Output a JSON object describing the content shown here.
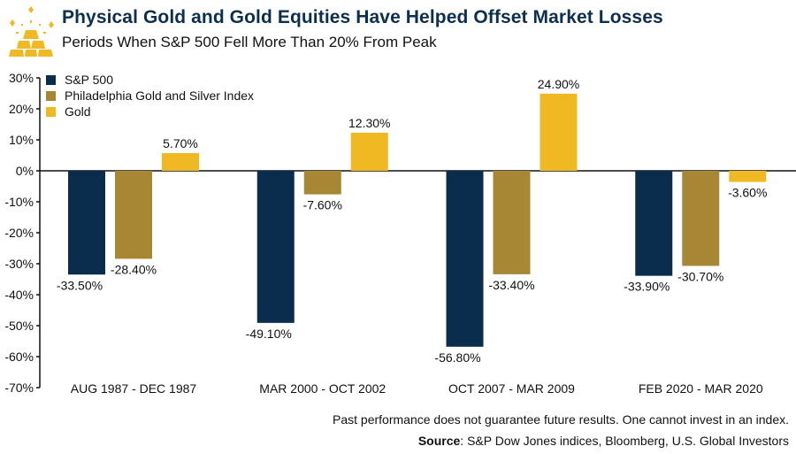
{
  "header": {
    "title": "Physical Gold and Gold Equities Have Helped Offset Market Losses",
    "subtitle": "Periods When S&P 500 Fell More Than 20% From Peak",
    "logo_icon": "gold-bars-icon"
  },
  "footer": {
    "disclaimer": "Past performance does not guarantee future results. One cannot invest in an index.",
    "source_label": "Source",
    "source_text": ": S&P Dow Jones indices, Bloomberg, U.S. Global Investors"
  },
  "colors": {
    "sp500": "#0b2d4d",
    "phil_gold_silver": "#a88734",
    "gold": "#f0b823",
    "title": "#0d2f4f",
    "logo": "#f0b823"
  },
  "chart_data": {
    "type": "bar",
    "title": "Physical Gold and Gold Equities Have Helped Offset Market Losses",
    "subtitle": "Periods When S&P 500 Fell More Than 20% From Peak",
    "xlabel": "",
    "ylabel": "",
    "categories": [
      "AUG 1987 - DEC 1987",
      "MAR 2000 - OCT 2002",
      "OCT 2007 - MAR 2009",
      "FEB 2020 - MAR 2020"
    ],
    "series": [
      {
        "name": "S&P 500",
        "color": "#0b2d4d",
        "values": [
          -33.5,
          -49.1,
          -56.8,
          -33.9
        ],
        "labels": [
          "-33.50%",
          "-49.10%",
          "-56.80%",
          "-33.90%"
        ]
      },
      {
        "name": "Philadelphia Gold and Silver Index",
        "color": "#a88734",
        "values": [
          -28.4,
          -7.6,
          -33.4,
          -30.7
        ],
        "labels": [
          "-28.40%",
          "-7.60%",
          "-33.40%",
          "-30.70%"
        ]
      },
      {
        "name": "Gold",
        "color": "#f0b823",
        "values": [
          5.7,
          12.3,
          24.9,
          -3.6
        ],
        "labels": [
          "5.70%",
          "12.30%",
          "24.90%",
          "-3.60%"
        ]
      }
    ],
    "ylim": [
      -70,
      30
    ],
    "yticks": [
      30,
      20,
      10,
      0,
      -10,
      -20,
      -30,
      -40,
      -50,
      -60,
      -70
    ],
    "ytick_labels": [
      "30%",
      "20%",
      "10%",
      "0%",
      "-10%",
      "-20%",
      "-30%",
      "-40%",
      "-50%",
      "-60%",
      "-70%"
    ],
    "grid": false,
    "legend": {
      "position": "top-left",
      "entries": [
        "S&P 500",
        "Philadelphia Gold and Silver Index",
        "Gold"
      ]
    }
  }
}
